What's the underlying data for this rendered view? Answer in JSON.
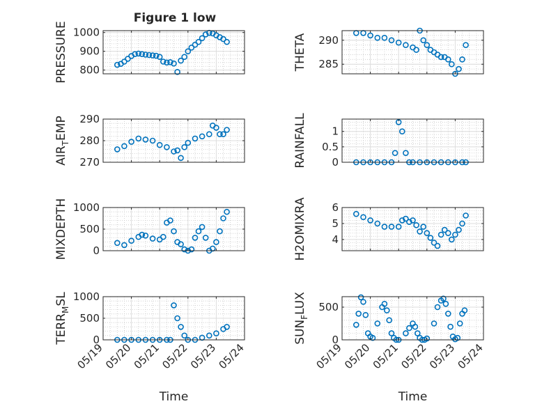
{
  "figure": {
    "title": "Figure 1 low"
  },
  "style": {
    "marker_color": "#0072BD",
    "grid_color": "#c8c8c8",
    "axis_color": "#262626"
  },
  "x_ticks": [
    "05/19",
    "05/20",
    "05/21",
    "05/22",
    "05/23",
    "05/24"
  ],
  "x_label": "Time",
  "chart_data": [
    {
      "type": "scatter",
      "ylabel": "PRESSURE",
      "ylim": [
        780,
        1010
      ],
      "yticks": [
        800,
        900,
        1000
      ],
      "ytick_labels": [
        "800",
        "900",
        "1000"
      ],
      "x": [
        "05/19 12:00",
        "05/19 15:00",
        "05/19 18:00",
        "05/19 21:00",
        "05/20 00:00",
        "05/20 03:00",
        "05/20 06:00",
        "05/20 09:00",
        "05/20 12:00",
        "05/20 15:00",
        "05/20 18:00",
        "05/20 21:00",
        "05/21 00:00",
        "05/21 03:00",
        "05/21 06:00",
        "05/21 09:00",
        "05/21 12:00",
        "05/21 15:00",
        "05/21 18:00",
        "05/21 21:00",
        "05/22 00:00",
        "05/22 03:00",
        "05/22 06:00",
        "05/22 09:00",
        "05/22 12:00",
        "05/22 15:00",
        "05/22 18:00",
        "05/22 21:00",
        "05/23 00:00",
        "05/23 03:00",
        "05/23 06:00",
        "05/23 09:00"
      ],
      "y": [
        828,
        833,
        845,
        860,
        875,
        885,
        888,
        885,
        882,
        880,
        878,
        876,
        870,
        845,
        840,
        842,
        835,
        790,
        850,
        870,
        900,
        920,
        935,
        950,
        970,
        990,
        998,
        995,
        985,
        975,
        965,
        950
      ]
    },
    {
      "type": "scatter",
      "ylabel": "THETA",
      "ylim": [
        283,
        292
      ],
      "yticks": [
        285,
        290
      ],
      "ytick_labels": [
        "285",
        "290"
      ],
      "x": [
        "05/19 12:00",
        "05/19 18:00",
        "05/20 00:00",
        "05/20 06:00",
        "05/20 12:00",
        "05/20 18:00",
        "05/21 00:00",
        "05/21 06:00",
        "05/21 12:00",
        "05/21 15:00",
        "05/21 18:00",
        "05/21 21:00",
        "05/22 00:00",
        "05/22 03:00",
        "05/22 06:00",
        "05/22 09:00",
        "05/22 12:00",
        "05/22 15:00",
        "05/22 18:00",
        "05/22 21:00",
        "05/23 00:00",
        "05/23 03:00",
        "05/23 06:00",
        "05/23 09:00"
      ],
      "y": [
        291.5,
        291.5,
        291,
        290.5,
        290.5,
        290,
        289.5,
        289,
        288.5,
        288,
        292,
        290,
        289,
        288,
        287.5,
        287,
        286.5,
        286.5,
        286,
        285,
        283,
        284,
        286,
        289
      ]
    },
    {
      "type": "scatter",
      "ylabel": "AIR_TEMP",
      "ylim": [
        270,
        290
      ],
      "yticks": [
        270,
        280,
        290
      ],
      "ytick_labels": [
        "270",
        "280",
        "290"
      ],
      "x": [
        "05/19 12:00",
        "05/19 18:00",
        "05/20 00:00",
        "05/20 06:00",
        "05/20 12:00",
        "05/20 18:00",
        "05/21 00:00",
        "05/21 06:00",
        "05/21 12:00",
        "05/21 15:00",
        "05/21 18:00",
        "05/21 21:00",
        "05/22 00:00",
        "05/22 06:00",
        "05/22 12:00",
        "05/22 18:00",
        "05/22 21:00",
        "05/23 00:00",
        "05/23 03:00",
        "05/23 06:00",
        "05/23 09:00"
      ],
      "y": [
        276,
        277.5,
        279.5,
        281,
        280.5,
        280,
        278,
        277,
        275,
        275.5,
        272,
        277,
        279,
        281,
        282,
        283,
        287,
        286,
        283,
        283,
        285
      ]
    },
    {
      "type": "scatter",
      "ylabel": "RAINFALL",
      "ylim": [
        0,
        1.4
      ],
      "yticks": [
        0,
        0.5,
        1
      ],
      "ytick_labels": [
        "0",
        "0.5",
        "1"
      ],
      "x": [
        "05/19 12:00",
        "05/19 18:00",
        "05/20 00:00",
        "05/20 06:00",
        "05/20 12:00",
        "05/20 18:00",
        "05/20 21:00",
        "05/21 00:00",
        "05/21 03:00",
        "05/21 06:00",
        "05/21 09:00",
        "05/21 12:00",
        "05/21 18:00",
        "05/22 00:00",
        "05/22 06:00",
        "05/22 12:00",
        "05/22 18:00",
        "05/23 00:00",
        "05/23 06:00",
        "05/23 09:00"
      ],
      "y": [
        0,
        0,
        0,
        0,
        0,
        0,
        0.3,
        1.3,
        1,
        0.3,
        0,
        0,
        0,
        0,
        0,
        0,
        0,
        0,
        0,
        0
      ]
    },
    {
      "type": "scatter",
      "ylabel": "MIXDEPTH",
      "ylim": [
        0,
        1000
      ],
      "yticks": [
        0,
        500,
        1000
      ],
      "ytick_labels": [
        "0",
        "500",
        "1000"
      ],
      "x": [
        "05/19 12:00",
        "05/19 18:00",
        "05/20 00:00",
        "05/20 06:00",
        "05/20 09:00",
        "05/20 12:00",
        "05/20 18:00",
        "05/21 00:00",
        "05/21 03:00",
        "05/21 06:00",
        "05/21 09:00",
        "05/21 12:00",
        "05/21 15:00",
        "05/21 18:00",
        "05/21 21:00",
        "05/22 00:00",
        "05/22 03:00",
        "05/22 06:00",
        "05/22 09:00",
        "05/22 12:00",
        "05/22 15:00",
        "05/22 18:00",
        "05/22 21:00",
        "05/23 00:00",
        "05/23 03:00",
        "05/23 06:00",
        "05/23 09:00"
      ],
      "y": [
        180,
        130,
        230,
        320,
        370,
        350,
        280,
        260,
        320,
        650,
        700,
        450,
        200,
        150,
        30,
        0,
        30,
        300,
        450,
        550,
        300,
        0,
        50,
        200,
        450,
        750,
        900
      ]
    },
    {
      "type": "scatter",
      "ylabel": "H2OMIXRA",
      "ylim": [
        3.3,
        6
      ],
      "yticks": [
        4,
        5,
        6
      ],
      "ytick_labels": [
        "4",
        "5",
        "6"
      ],
      "x": [
        "05/19 12:00",
        "05/19 18:00",
        "05/20 00:00",
        "05/20 06:00",
        "05/20 12:00",
        "05/20 18:00",
        "05/21 00:00",
        "05/21 03:00",
        "05/21 06:00",
        "05/21 09:00",
        "05/21 12:00",
        "05/21 15:00",
        "05/21 18:00",
        "05/21 21:00",
        "05/22 00:00",
        "05/22 03:00",
        "05/22 06:00",
        "05/22 09:00",
        "05/22 12:00",
        "05/22 15:00",
        "05/22 18:00",
        "05/22 21:00",
        "05/23 00:00",
        "05/23 03:00",
        "05/23 06:00",
        "05/23 09:00"
      ],
      "y": [
        5.6,
        5.4,
        5.2,
        5,
        4.8,
        4.8,
        4.8,
        5.2,
        5.3,
        5.1,
        5.2,
        4.9,
        4.5,
        4.8,
        4.4,
        4.1,
        3.8,
        3.6,
        4.3,
        4.6,
        4.4,
        4,
        4.3,
        4.6,
        5,
        5.5
      ]
    },
    {
      "type": "scatter",
      "ylabel": "TERR_MSL",
      "ylim": [
        0,
        1000
      ],
      "yticks": [
        0,
        500,
        1000
      ],
      "ytick_labels": [
        "0",
        "500",
        "1000"
      ],
      "x": [
        "05/19 12:00",
        "05/19 18:00",
        "05/20 00:00",
        "05/20 06:00",
        "05/20 12:00",
        "05/20 18:00",
        "05/21 00:00",
        "05/21 06:00",
        "05/21 09:00",
        "05/21 12:00",
        "05/21 15:00",
        "05/21 18:00",
        "05/21 21:00",
        "05/22 00:00",
        "05/22 06:00",
        "05/22 12:00",
        "05/22 18:00",
        "05/23 00:00",
        "05/23 06:00",
        "05/23 09:00"
      ],
      "y": [
        0,
        0,
        0,
        0,
        0,
        0,
        0,
        0,
        0,
        800,
        500,
        300,
        100,
        0,
        0,
        50,
        100,
        150,
        250,
        300
      ]
    },
    {
      "type": "scatter",
      "ylabel": "SUN_FLUX",
      "ylim": [
        0,
        660
      ],
      "yticks": [
        0,
        500
      ],
      "ytick_labels": [
        "0",
        "500"
      ],
      "x": [
        "05/19 12:00",
        "05/19 14:00",
        "05/19 16:00",
        "05/19 18:00",
        "05/19 20:00",
        "05/19 22:00",
        "05/20 00:00",
        "05/20 02:00",
        "05/20 06:00",
        "05/20 10:00",
        "05/20 12:00",
        "05/20 14:00",
        "05/20 16:00",
        "05/20 18:00",
        "05/20 20:00",
        "05/20 22:00",
        "05/21 00:00",
        "05/21 06:00",
        "05/21 09:00",
        "05/21 12:00",
        "05/21 14:00",
        "05/21 16:00",
        "05/21 18:00",
        "05/21 20:00",
        "05/21 22:00",
        "05/22 00:00",
        "05/22 06:00",
        "05/22 09:00",
        "05/22 12:00",
        "05/22 14:00",
        "05/22 16:00",
        "05/22 18:00",
        "05/22 20:00",
        "05/22 22:00",
        "05/23 00:00",
        "05/23 02:00",
        "05/23 04:00",
        "05/23 06:00",
        "05/23 08:00"
      ],
      "y": [
        230,
        400,
        650,
        580,
        380,
        100,
        50,
        30,
        250,
        500,
        550,
        450,
        300,
        100,
        30,
        0,
        0,
        100,
        180,
        250,
        200,
        100,
        30,
        0,
        0,
        20,
        250,
        500,
        600,
        630,
        550,
        400,
        200,
        50,
        10,
        30,
        250,
        400,
        450
      ]
    }
  ]
}
